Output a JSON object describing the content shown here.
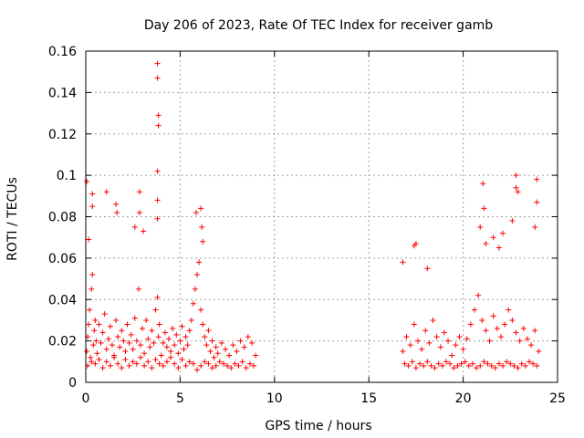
{
  "chart_data": {
    "type": "scatter",
    "title": "Day 206 of 2023, Rate Of TEC Index for receiver gamb",
    "xlabel": "GPS time / hours",
    "ylabel": "ROTI / TECUs",
    "xlim": [
      0,
      25
    ],
    "ylim": [
      0,
      0.16
    ],
    "xticks": [
      0,
      5,
      10,
      15,
      20,
      25
    ],
    "xtick_labels": [
      "0",
      "5",
      "10",
      "15",
      "20",
      "25"
    ],
    "yticks": [
      0,
      0.02,
      0.04,
      0.06,
      0.08,
      0.1,
      0.12,
      0.14,
      0.16
    ],
    "ytick_labels": [
      "0",
      "0.02",
      "0.04",
      "0.06",
      "0.08",
      "0.1",
      "0.12",
      "0.14",
      "0.16"
    ],
    "grid": true,
    "marker": "+",
    "color": "#ff0000",
    "series": [
      {
        "name": "ROTI",
        "x": [
          0.05,
          0.1,
          0.15,
          0.2,
          0.25,
          0.3,
          0.35,
          0.4,
          0.45,
          0.5,
          0.55,
          0.6,
          0.7,
          0.8,
          0.9,
          1.0,
          1.1,
          1.2,
          1.3,
          1.4,
          1.5,
          1.6,
          1.7,
          1.8,
          1.9,
          2.0,
          2.1,
          2.2,
          2.3,
          2.4,
          2.5,
          2.6,
          2.7,
          2.8,
          2.9,
          3.0,
          3.1,
          3.2,
          3.3,
          3.4,
          3.5,
          3.6,
          3.7,
          3.8,
          3.85,
          3.9,
          4.0,
          4.1,
          4.2,
          4.3,
          4.4,
          4.5,
          4.6,
          4.7,
          4.8,
          4.9,
          5.0,
          5.1,
          5.2,
          5.3,
          5.4,
          5.5,
          5.6,
          5.7,
          5.8,
          5.9,
          6.0,
          6.1,
          6.2,
          6.3,
          6.4,
          6.5,
          6.6,
          6.7,
          6.8,
          6.9,
          7.0,
          7.2,
          7.4,
          7.6,
          7.8,
          8.0,
          8.2,
          8.4,
          8.6,
          8.8,
          9.0,
          0.1,
          0.3,
          0.5,
          0.7,
          0.9,
          1.1,
          1.3,
          1.5,
          1.7,
          1.9,
          2.1,
          2.3,
          2.5,
          2.7,
          2.9,
          3.1,
          3.3,
          3.5,
          3.7,
          3.9,
          4.1,
          4.3,
          4.5,
          4.7,
          4.9,
          5.1,
          5.3,
          5.5,
          5.7,
          5.9,
          6.1,
          6.3,
          6.5,
          6.7,
          6.9,
          7.1,
          7.3,
          7.5,
          7.7,
          7.9,
          8.1,
          8.3,
          8.5,
          8.7,
          8.9,
          3.8,
          3.8,
          3.85,
          3.85,
          3.8,
          3.8,
          3.8,
          0.05,
          0.35,
          0.35,
          1.1,
          2.85,
          2.85,
          5.85,
          6.1,
          6.15,
          6.2,
          0.15,
          1.6,
          1.65,
          3.05,
          2.6,
          16.8,
          17.0,
          17.2,
          17.4,
          17.6,
          17.8,
          18.0,
          18.2,
          18.4,
          18.6,
          18.8,
          19.0,
          19.2,
          19.4,
          19.6,
          19.8,
          20.0,
          20.2,
          20.4,
          20.6,
          20.8,
          21.0,
          21.2,
          21.4,
          21.6,
          21.8,
          22.0,
          22.2,
          22.4,
          22.6,
          22.8,
          23.0,
          23.2,
          23.4,
          23.6,
          23.8,
          24.0,
          16.9,
          17.1,
          17.3,
          17.5,
          17.7,
          17.9,
          18.1,
          18.3,
          18.5,
          18.7,
          18.9,
          19.1,
          19.3,
          19.5,
          19.7,
          19.9,
          20.1,
          20.3,
          20.5,
          20.7,
          20.9,
          21.1,
          21.3,
          21.5,
          21.7,
          21.9,
          22.1,
          22.3,
          22.5,
          22.7,
          22.9,
          23.1,
          23.3,
          23.5,
          23.7,
          23.9,
          22.8,
          22.8,
          22.9,
          23.9,
          23.9,
          21.05,
          21.1,
          20.9,
          21.2,
          17.4,
          17.5,
          16.8,
          18.1,
          23.8,
          22.6,
          21.6,
          21.9,
          22.1
        ],
        "y": [
          0.015,
          0.022,
          0.028,
          0.035,
          0.012,
          0.045,
          0.052,
          0.018,
          0.025,
          0.03,
          0.02,
          0.014,
          0.028,
          0.019,
          0.024,
          0.033,
          0.016,
          0.021,
          0.027,
          0.018,
          0.013,
          0.03,
          0.022,
          0.017,
          0.025,
          0.02,
          0.015,
          0.028,
          0.019,
          0.023,
          0.016,
          0.031,
          0.02,
          0.045,
          0.018,
          0.026,
          0.014,
          0.03,
          0.021,
          0.017,
          0.025,
          0.019,
          0.035,
          0.041,
          0.022,
          0.028,
          0.013,
          0.019,
          0.024,
          0.017,
          0.021,
          0.015,
          0.026,
          0.018,
          0.023,
          0.014,
          0.02,
          0.027,
          0.016,
          0.022,
          0.018,
          0.025,
          0.03,
          0.038,
          0.045,
          0.052,
          0.058,
          0.035,
          0.028,
          0.022,
          0.018,
          0.025,
          0.015,
          0.02,
          0.012,
          0.017,
          0.014,
          0.019,
          0.016,
          0.013,
          0.018,
          0.015,
          0.02,
          0.017,
          0.022,
          0.019,
          0.013,
          0.008,
          0.01,
          0.009,
          0.011,
          0.007,
          0.01,
          0.008,
          0.012,
          0.009,
          0.007,
          0.011,
          0.008,
          0.01,
          0.009,
          0.012,
          0.008,
          0.01,
          0.007,
          0.011,
          0.009,
          0.008,
          0.01,
          0.012,
          0.009,
          0.007,
          0.011,
          0.008,
          0.01,
          0.009,
          0.006,
          0.008,
          0.01,
          0.009,
          0.007,
          0.008,
          0.01,
          0.009,
          0.008,
          0.007,
          0.009,
          0.008,
          0.01,
          0.007,
          0.009,
          0.008,
          0.154,
          0.147,
          0.129,
          0.124,
          0.102,
          0.088,
          0.079,
          0.097,
          0.091,
          0.085,
          0.092,
          0.092,
          0.082,
          0.082,
          0.084,
          0.075,
          0.068,
          0.069,
          0.086,
          0.082,
          0.073,
          0.075,
          0.015,
          0.022,
          0.018,
          0.028,
          0.02,
          0.016,
          0.025,
          0.019,
          0.03,
          0.022,
          0.017,
          0.024,
          0.02,
          0.013,
          0.018,
          0.022,
          0.016,
          0.021,
          0.028,
          0.035,
          0.042,
          0.03,
          0.025,
          0.02,
          0.032,
          0.026,
          0.022,
          0.028,
          0.035,
          0.03,
          0.024,
          0.02,
          0.026,
          0.021,
          0.018,
          0.025,
          0.015,
          0.009,
          0.008,
          0.01,
          0.007,
          0.009,
          0.008,
          0.01,
          0.008,
          0.007,
          0.009,
          0.008,
          0.01,
          0.009,
          0.007,
          0.008,
          0.009,
          0.01,
          0.008,
          0.009,
          0.007,
          0.008,
          0.01,
          0.009,
          0.008,
          0.007,
          0.009,
          0.008,
          0.01,
          0.009,
          0.008,
          0.007,
          0.009,
          0.008,
          0.01,
          0.009,
          0.008,
          0.1,
          0.094,
          0.092,
          0.098,
          0.087,
          0.096,
          0.084,
          0.075,
          0.067,
          0.066,
          0.067,
          0.058,
          0.055,
          0.075,
          0.078,
          0.07,
          0.065,
          0.072
        ]
      }
    ]
  }
}
